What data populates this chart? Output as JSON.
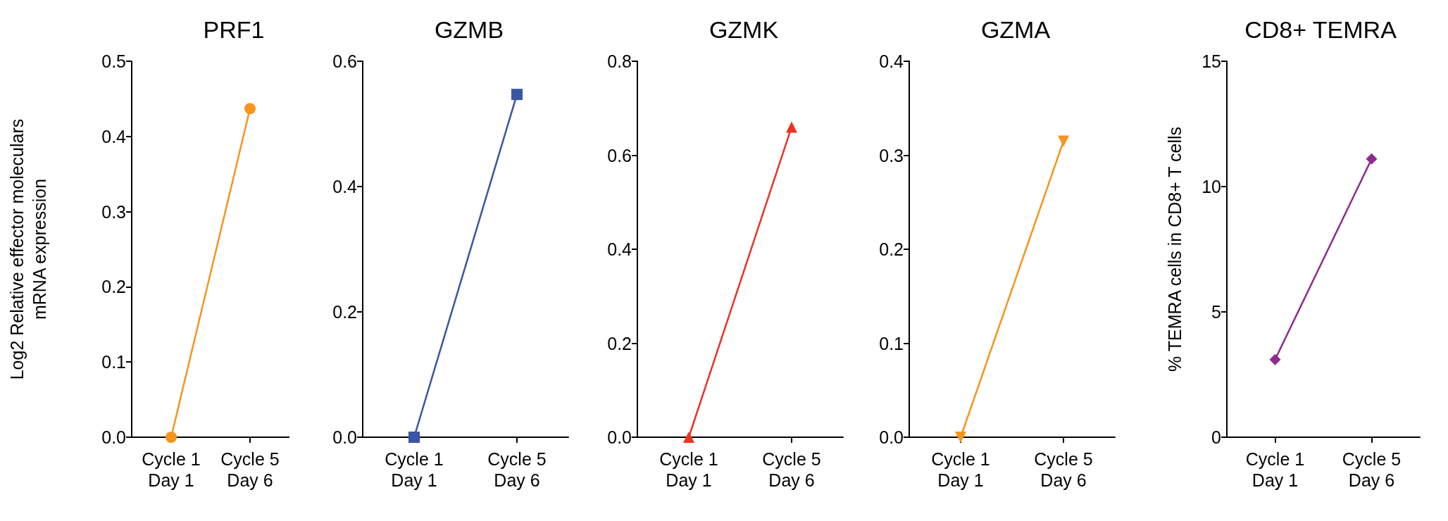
{
  "chart_data": [
    {
      "type": "line",
      "title": "PRF1",
      "ylabel": "Log2 Relative effector moleculars\nmRNA expression",
      "categories": [
        "Cycle 1\nDay 1",
        "Cycle 5\nDay 6"
      ],
      "series": [
        {
          "color": "#f7941d",
          "values": [
            0,
            0.437
          ]
        }
      ],
      "ylim": [
        0,
        0.5
      ],
      "yticks": [
        {
          "value": 0,
          "label": "0.0"
        },
        {
          "value": 0.1,
          "label": "0.1"
        },
        {
          "value": 0.2,
          "label": "0.2"
        },
        {
          "value": 0.3,
          "label": "0.3"
        },
        {
          "value": 0.4,
          "label": "0.4"
        },
        {
          "value": 0.5,
          "label": "0.5"
        }
      ],
      "marker": "circle",
      "grid": false
    },
    {
      "type": "line",
      "title": "GZMB",
      "categories": [
        "Cycle 1\nDay 1",
        "Cycle 5\nDay 6"
      ],
      "series": [
        {
          "color": "#3a55a4",
          "values": [
            0,
            0.547
          ]
        }
      ],
      "ylim": [
        0,
        0.6
      ],
      "yticks": [
        {
          "value": 0,
          "label": "0.0"
        },
        {
          "value": 0.2,
          "label": "0.2"
        },
        {
          "value": 0.4,
          "label": "0.4"
        },
        {
          "value": 0.6,
          "label": "0.6"
        }
      ],
      "marker": "square",
      "grid": false
    },
    {
      "type": "line",
      "title": "GZMK",
      "categories": [
        "Cycle 1\nDay 1",
        "Cycle 5\nDay 6"
      ],
      "series": [
        {
          "color": "#ee3124",
          "values": [
            0,
            0.66
          ]
        }
      ],
      "ylim": [
        0,
        0.8
      ],
      "yticks": [
        {
          "value": 0,
          "label": "0.0"
        },
        {
          "value": 0.2,
          "label": "0.2"
        },
        {
          "value": 0.4,
          "label": "0.4"
        },
        {
          "value": 0.6,
          "label": "0.6"
        },
        {
          "value": 0.8,
          "label": "0.8"
        }
      ],
      "marker": "triangle",
      "grid": false
    },
    {
      "type": "line",
      "title": "GZMA",
      "categories": [
        "Cycle 1\nDay 1",
        "Cycle 5\nDay 6"
      ],
      "series": [
        {
          "color": "#f7941d",
          "values": [
            0,
            0.315
          ]
        }
      ],
      "ylim": [
        0,
        0.4
      ],
      "yticks": [
        {
          "value": 0,
          "label": "0.0"
        },
        {
          "value": 0.1,
          "label": "0.1"
        },
        {
          "value": 0.2,
          "label": "0.2"
        },
        {
          "value": 0.3,
          "label": "0.3"
        },
        {
          "value": 0.4,
          "label": "0.4"
        }
      ],
      "marker": "triangle-down",
      "grid": false
    },
    {
      "type": "line",
      "title": "CD8+ TEMRA",
      "ylabel": "% TEMRA cells in CD8+ T cells",
      "categories": [
        "Cycle 1\nDay 1",
        "Cycle 5\nDay 6"
      ],
      "series": [
        {
          "color": "#8e2a8e",
          "values": [
            3.1,
            11.1
          ]
        }
      ],
      "ylim": [
        0,
        15
      ],
      "yticks": [
        0,
        5,
        10,
        15
      ],
      "marker": "diamond",
      "grid": false
    }
  ]
}
